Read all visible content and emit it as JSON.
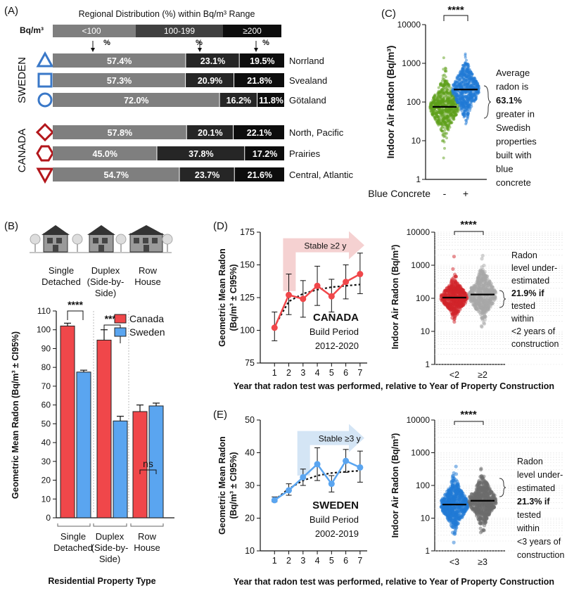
{
  "colors": {
    "light_bar": "#7f7f7f",
    "mid_bar": "#262626",
    "dark_bar": "#0d0d0d",
    "header_light": "#7f7f7f",
    "header_mid": "#404040",
    "header_dark": "#0d0d0d",
    "sweden_icon": "#3a78c8",
    "canada_icon": "#b3161b",
    "canada_red": "#f0474a",
    "sweden_blue": "#5aa5f0",
    "green": "#5ea01a",
    "blue_scatter": "#1f79d6",
    "red_scatter": "#d1232a",
    "gray_scatter": "#7a7a7a",
    "arrow_pink": "#f3c9c9",
    "arrow_blue": "#cde1f3"
  },
  "panel_a": {
    "label": "(A)",
    "title": "Regional Distribution (%) within Bq/m³ Range",
    "unit_label": "Bq/m³",
    "ranges": [
      "<100",
      "100-199",
      "≥200"
    ],
    "percent_marker": "%",
    "countries": [
      {
        "name": "SWEDEN",
        "regions": [
          {
            "name": "Norrland",
            "icon": "triangle-icon",
            "values": [
              57.4,
              23.1,
              19.5
            ],
            "labels": [
              "57.4%",
              "23.1%",
              "19.5%"
            ]
          },
          {
            "name": "Svealand",
            "icon": "square-icon",
            "values": [
              57.3,
              20.9,
              21.8
            ],
            "labels": [
              "57.3%",
              "20.9%",
              "21.8%"
            ]
          },
          {
            "name": "Götaland",
            "icon": "circle-icon",
            "values": [
              72.0,
              16.2,
              11.8
            ],
            "labels": [
              "72.0%",
              "16.2%",
              "11.8%"
            ]
          }
        ]
      },
      {
        "name": "CANADA",
        "regions": [
          {
            "name": "North, Pacific",
            "icon": "diamond-icon",
            "values": [
              57.8,
              20.1,
              22.1
            ],
            "labels": [
              "57.8%",
              "20.1%",
              "22.1%"
            ]
          },
          {
            "name": "Prairies",
            "icon": "hexagon-icon",
            "values": [
              45.0,
              37.8,
              17.2
            ],
            "labels": [
              "45.0%",
              "37.8%",
              "17.2%"
            ]
          },
          {
            "name": "Central, Atlantic",
            "icon": "down-triangle-icon",
            "values": [
              54.7,
              23.7,
              21.6
            ],
            "labels": [
              "54.7%",
              "23.7%",
              "21.6%"
            ]
          }
        ]
      }
    ]
  },
  "panel_b": {
    "label": "(B)",
    "house_labels": [
      "Single Detached",
      "Duplex (Side-by-Side)",
      "Row House"
    ],
    "ylabel": "Geometric Mean Radon (Bq/m³ ± CI95%)",
    "xlabel": "Residential Property Type",
    "legend": [
      "Canada",
      "Sweden"
    ],
    "significance": [
      "****",
      "****",
      "ns"
    ]
  },
  "panel_c": {
    "label": "(C)",
    "ylabel": "Indoor Air Radon (Bq/m³)",
    "xlabel": "Blue Concrete",
    "tick_labels": [
      "-",
      "+"
    ],
    "significance": "****",
    "note_lines": [
      "Average",
      "radon is",
      "63.1%",
      "greater in",
      "Swedish",
      "properties",
      "built with",
      "blue",
      "concrete"
    ]
  },
  "panel_d": {
    "label": "(D)",
    "line_ylabel": "Geometric Mean Radon (Bq/m³ ± CI95%)",
    "stable_text": "Stable ≥2 y",
    "country": "CANADA",
    "build_period_label": "Build Period",
    "build_period": "2012-2020",
    "scatter_ylabel": "Indoor Air Radon (Bq/m³)",
    "scatter_ticks": [
      "<2",
      "≥2"
    ],
    "significance": "****",
    "note_lines": [
      "Radon",
      "level under-",
      "estimated",
      "21.9% if",
      "tested",
      "within",
      "<2 years of",
      "construction"
    ],
    "xlabel": "Year that radon test was performed, relative to Year of Property Construction"
  },
  "panel_e": {
    "label": "(E)",
    "line_ylabel": "Geometric Mean Radon (Bq/m³ ± CI95%)",
    "stable_text": "Stable ≥3 y",
    "country": "SWEDEN",
    "build_period_label": "Build Period",
    "build_period": "2002-2019",
    "scatter_ylabel": "Indoor Air Radon (Bq/m³)",
    "scatter_ticks": [
      "<3",
      "≥3"
    ],
    "significance": "****",
    "note_lines": [
      "Radon",
      "level under-",
      "estimated",
      "21.3% if",
      "tested",
      "within",
      "<3 years of",
      "construction"
    ],
    "xlabel": "Year that radon test was performed, relative to Year of Property Construction"
  },
  "chart_data": [
    {
      "id": "B",
      "type": "bar",
      "categories": [
        "Single Detached",
        "Duplex (Side-by-Side)",
        "Row House"
      ],
      "series": [
        {
          "name": "Canada",
          "values": [
            102,
            94.5,
            56.5
          ],
          "ci": [
            1.5,
            5.5,
            3.5
          ]
        },
        {
          "name": "Sweden",
          "values": [
            77.5,
            51.5,
            59.5
          ],
          "ci": [
            1,
            2.5,
            1.5
          ]
        }
      ],
      "ylim": [
        0,
        110
      ],
      "yticks": [
        0,
        10,
        20,
        30,
        40,
        50,
        60,
        70,
        80,
        90,
        100,
        110
      ],
      "ylabel": "Geometric Mean Radon (Bq/m³ ± CI95%)",
      "xlabel": "Residential Property Type"
    },
    {
      "id": "C",
      "type": "scatter",
      "categories": [
        "-",
        "+"
      ],
      "medians": [
        75,
        210
      ],
      "log_scale": true,
      "ylim": [
        1,
        10000
      ],
      "yticks": [
        "1",
        "10",
        "100",
        "1000",
        "10000"
      ],
      "ylabel": "Indoor Air Radon (Bq/m³)",
      "xlabel": "Blue Concrete"
    },
    {
      "id": "D-line",
      "type": "line",
      "x": [
        1,
        2,
        3,
        4,
        5,
        6,
        7
      ],
      "y": [
        102,
        127,
        124,
        134,
        126,
        137,
        143
      ],
      "ci_low": [
        92,
        112,
        110,
        119,
        114,
        124,
        128
      ],
      "ci_high": [
        114,
        143,
        138,
        149,
        139,
        150,
        159
      ],
      "trend": [
        103,
        122,
        128,
        131,
        133,
        134,
        135
      ],
      "xlim": [
        0,
        7.5
      ],
      "ylim": [
        75,
        175
      ],
      "yticks": [
        75,
        100,
        125,
        150,
        175
      ]
    },
    {
      "id": "D-scatter",
      "type": "scatter",
      "categories": [
        "<2",
        "≥2"
      ],
      "medians": [
        105,
        130
      ],
      "log_scale": true,
      "ylim": [
        1,
        10000
      ],
      "yticks": [
        "1",
        "10",
        "100",
        "1000",
        "10000"
      ]
    },
    {
      "id": "E-line",
      "type": "line",
      "x": [
        1,
        2,
        3,
        4,
        5,
        6,
        7
      ],
      "y": [
        25.5,
        28.5,
        32.5,
        36.5,
        30.5,
        37.5,
        35.5
      ],
      "ci_low": [
        25,
        27,
        30,
        31.5,
        28,
        34,
        31
      ],
      "ci_high": [
        26.5,
        30.5,
        35,
        41.5,
        33,
        41,
        40.5
      ],
      "trend": [
        25.5,
        29,
        31.5,
        33,
        33.8,
        34.2,
        34.5
      ],
      "xlim": [
        0,
        7.5
      ],
      "ylim": [
        10,
        50
      ],
      "yticks": [
        10,
        20,
        30,
        40,
        50
      ]
    },
    {
      "id": "E-scatter",
      "type": "scatter",
      "categories": [
        "<3",
        "≥3"
      ],
      "medians": [
        26,
        34
      ],
      "log_scale": true,
      "ylim": [
        1,
        10000
      ],
      "yticks": [
        "1",
        "10",
        "100",
        "1000",
        "10000"
      ]
    }
  ]
}
